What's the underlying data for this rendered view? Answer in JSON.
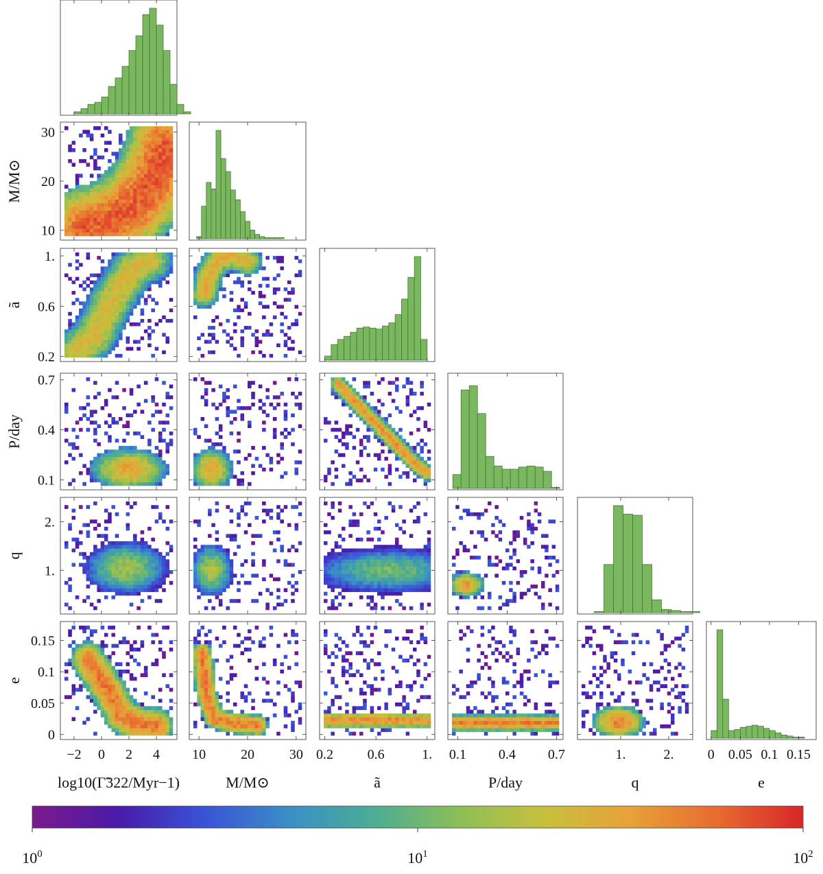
{
  "chart_data": {
    "type": "corner",
    "variables": [
      "log10Gamma",
      "M",
      "a",
      "P",
      "q",
      "e"
    ],
    "axis_labels": {
      "log10Gamma": "log10(Γ̃322/Myr−1)",
      "M": "M/M⊙",
      "a": "ã",
      "P": "P/day",
      "q": "q",
      "e": "e"
    },
    "ranges": {
      "log10Gamma": [
        -3.0,
        5.5
      ],
      "M": [
        8.0,
        32.0
      ],
      "a": [
        0.16,
        1.06
      ],
      "P": [
        0.04,
        0.74
      ],
      "q": [
        0.1,
        2.5
      ],
      "e": [
        -0.008,
        0.18
      ]
    },
    "ticks": {
      "log10Gamma": {
        "values": [
          -2,
          0,
          2,
          4
        ],
        "labels": [
          "−2",
          "0",
          "2",
          "4"
        ]
      },
      "M": {
        "values": [
          10,
          20,
          30
        ],
        "labels": [
          "10",
          "20",
          "30"
        ]
      },
      "a": {
        "values": [
          0.2,
          0.6,
          1.0
        ],
        "labels": [
          "0.2",
          "0.6",
          "1."
        ]
      },
      "P": {
        "values": [
          0.1,
          0.4,
          0.7
        ],
        "labels": [
          "0.1",
          "0.4",
          "0.7"
        ]
      },
      "q": {
        "values": [
          1.0,
          2.0
        ],
        "labels": [
          "1.",
          "2."
        ]
      },
      "e": {
        "values": [
          0,
          0.05,
          0.1,
          0.15
        ],
        "labels": [
          "0",
          "0.05",
          "0.1",
          "0.15"
        ]
      }
    },
    "histograms": {
      "log10Gamma": {
        "bin_start": -2.0,
        "bin_width": 0.5,
        "counts": [
          0.02,
          0.05,
          0.09,
          0.11,
          0.16,
          0.26,
          0.34,
          0.45,
          0.6,
          0.74,
          0.94,
          1.0,
          0.84,
          0.6,
          0.28,
          0.09,
          0.02
        ]
      },
      "M": {
        "bin_start": 9.5,
        "bin_width": 1.0,
        "counts": [
          0.02,
          0.3,
          0.52,
          0.46,
          1.0,
          0.74,
          0.62,
          0.45,
          0.36,
          0.25,
          0.16,
          0.08,
          0.04,
          0.02,
          0.01,
          0.01,
          0.01,
          0.01
        ]
      },
      "a": {
        "bin_start": 0.2,
        "bin_width": 0.05,
        "counts": [
          0.04,
          0.15,
          0.2,
          0.23,
          0.27,
          0.31,
          0.32,
          0.31,
          0.3,
          0.33,
          0.36,
          0.44,
          0.59,
          0.8,
          1.0,
          0.2
        ]
      },
      "P": {
        "bin_start": 0.07,
        "bin_width": 0.05,
        "counts": [
          0.13,
          0.92,
          0.96,
          0.7,
          0.3,
          0.21,
          0.18,
          0.18,
          0.2,
          0.21,
          0.2,
          0.16,
          0.01
        ]
      },
      "q": {
        "bin_start": 0.45,
        "bin_width": 0.2,
        "counts": [
          0.01,
          0.45,
          1.0,
          0.92,
          0.91,
          0.45,
          0.12,
          0.03,
          0.02,
          0.01,
          0.01
        ]
      },
      "e": {
        "bin_start": 0.0,
        "bin_width": 0.01,
        "counts": [
          0.07,
          1.0,
          0.36,
          0.07,
          0.08,
          0.1,
          0.11,
          0.12,
          0.11,
          0.09,
          0.07,
          0.05,
          0.03,
          0.02,
          0.01,
          0.01
        ]
      }
    },
    "density_2d": [
      {
        "x": "log10Gamma",
        "y": "M",
        "shape": "curve",
        "pts": [
          [
            -1,
            10.4
          ],
          [
            0,
            11
          ],
          [
            1,
            12.5
          ],
          [
            2,
            14.3
          ],
          [
            3,
            17
          ],
          [
            4,
            21
          ],
          [
            4.8,
            27
          ]
        ],
        "width": 1.4,
        "peak": 80
      },
      {
        "x": "log10Gamma",
        "y": "a",
        "shape": "curve",
        "pts": [
          [
            -1.8,
            0.24
          ],
          [
            -0.5,
            0.36
          ],
          [
            0.5,
            0.6
          ],
          [
            1.5,
            0.78
          ],
          [
            2.5,
            0.92
          ],
          [
            3.5,
            0.97
          ]
        ],
        "width": 0.8,
        "peak": 30
      },
      {
        "x": "M",
        "y": "a",
        "shape": "curve",
        "pts": [
          [
            11,
            0.7
          ],
          [
            12,
            0.87
          ],
          [
            14,
            0.98
          ],
          [
            17,
            1.0
          ],
          [
            20,
            0.96
          ]
        ],
        "width": 1.4,
        "peak": 35
      },
      {
        "x": "log10Gamma",
        "y": "P",
        "shape": "blob",
        "cx": 2.0,
        "cy": 0.16,
        "sx": 1.3,
        "sy": 0.06,
        "peak": 40
      },
      {
        "x": "M",
        "y": "P",
        "shape": "blob",
        "cx": 12.5,
        "cy": 0.16,
        "sx": 2.0,
        "sy": 0.06,
        "peak": 40
      },
      {
        "x": "a",
        "y": "P",
        "shape": "curve",
        "pts": [
          [
            0.3,
            0.68
          ],
          [
            0.5,
            0.52
          ],
          [
            0.7,
            0.36
          ],
          [
            0.9,
            0.2
          ],
          [
            1.0,
            0.14
          ]
        ],
        "width": 0.03,
        "peak": 45
      },
      {
        "x": "log10Gamma",
        "y": "q",
        "shape": "blob",
        "cx": 1.8,
        "cy": 1.05,
        "sx": 1.4,
        "sy": 0.25,
        "peak": 18
      },
      {
        "x": "M",
        "y": "q",
        "shape": "blob",
        "cx": 12.5,
        "cy": 1.0,
        "sx": 2.0,
        "sy": 0.25,
        "peak": 20
      },
      {
        "x": "a",
        "y": "q",
        "shape": "blob",
        "cx": 0.7,
        "cy": 1.0,
        "sx": 0.3,
        "sy": 0.22,
        "peak": 12
      },
      {
        "x": "P",
        "y": "q",
        "shape": "blob",
        "cx": 0.15,
        "cy": 0.7,
        "sx": 0.05,
        "sy": 0.12,
        "peak": 45
      },
      {
        "x": "log10Gamma",
        "y": "e",
        "shape": "curve",
        "pts": [
          [
            -1,
            0.12
          ],
          [
            0.5,
            0.07
          ],
          [
            1.5,
            0.03
          ],
          [
            2.5,
            0.017
          ],
          [
            4,
            0.013
          ]
        ],
        "width": 0.6,
        "peak": 60
      },
      {
        "x": "M",
        "y": "e",
        "shape": "curve",
        "pts": [
          [
            10.5,
            0.13
          ],
          [
            11.5,
            0.06
          ],
          [
            13,
            0.025
          ],
          [
            17,
            0.018
          ],
          [
            22,
            0.014
          ]
        ],
        "width": 1.0,
        "peak": 60
      },
      {
        "x": "a",
        "y": "e",
        "shape": "band",
        "y0": 0.022,
        "sy": 0.006,
        "peak": 50
      },
      {
        "x": "P",
        "y": "e",
        "shape": "band",
        "y0": 0.018,
        "sy": 0.006,
        "peak": 60
      },
      {
        "x": "q",
        "y": "e",
        "shape": "blob",
        "cx": 0.95,
        "cy": 0.02,
        "sx": 0.25,
        "sy": 0.012,
        "peak": 60
      }
    ],
    "colorbar": {
      "scale": "log",
      "range": [
        1,
        100
      ],
      "colors": [
        "#7b1a8c",
        "#4a1aa8",
        "#3a52d6",
        "#3a8ec7",
        "#4cad93",
        "#8dbf56",
        "#c9bf3c",
        "#e8a038",
        "#e86a2f",
        "#d9262a"
      ],
      "ticks": [
        {
          "base": "10",
          "exp": "0"
        },
        {
          "base": "10",
          "exp": "1"
        },
        {
          "base": "10",
          "exp": "2"
        }
      ]
    }
  }
}
